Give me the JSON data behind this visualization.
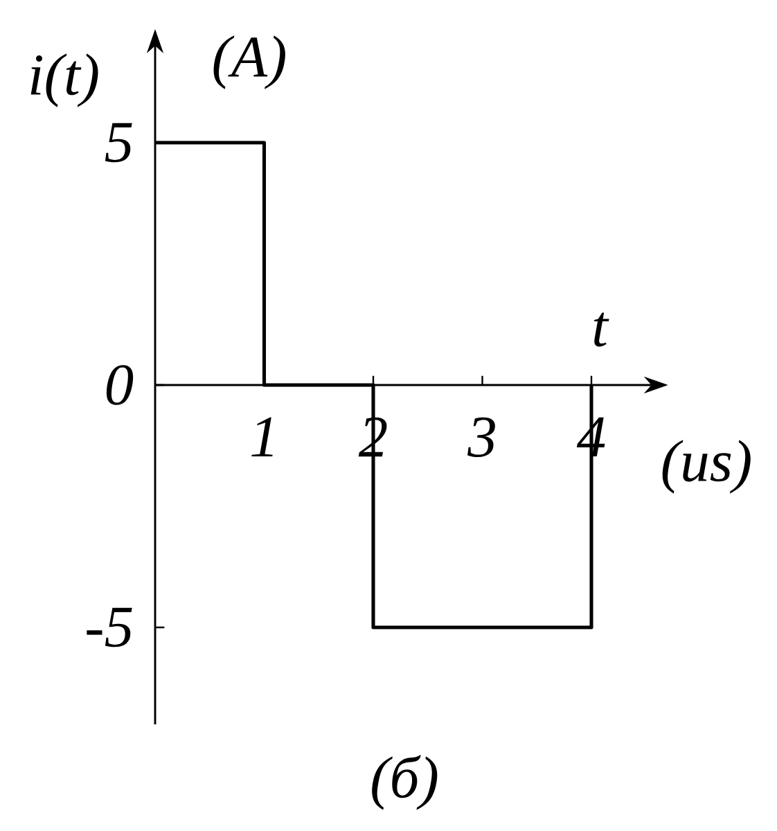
{
  "chart_data": {
    "type": "step",
    "title": "(б)",
    "xlabel": "t",
    "ylabel": "i(t)",
    "annotations": [
      "(A)",
      "(us)"
    ],
    "x": [
      0,
      1,
      2,
      4
    ],
    "values": [
      5,
      0,
      -5,
      0
    ],
    "color": "#000000",
    "xlim": [
      0,
      4.55
    ],
    "ylim": [
      -7,
      7
    ],
    "xticks": [
      1,
      2,
      3,
      4
    ],
    "yticks": [
      -5,
      0,
      5
    ]
  }
}
